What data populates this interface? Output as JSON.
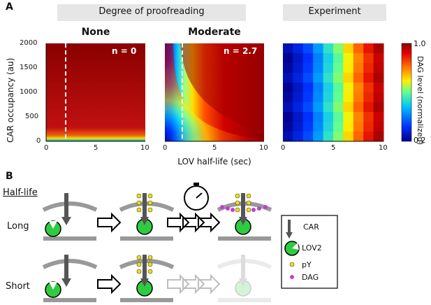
{
  "panelA": {
    "label": "A",
    "group_header": "Degree of proofreading",
    "experiment_header": "Experiment",
    "ylabel": "CAR occupancy (au)",
    "xlabel": "LOV half-life (sec)",
    "yticks": [
      "2000",
      "1500",
      "1000",
      "500",
      "0"
    ],
    "xticks": [
      "0",
      "5",
      "10"
    ],
    "colorbar_label": "DAG level (normalized)",
    "colorbar_ticks": [
      "1.0",
      "0.2"
    ]
  },
  "panelB": {
    "label": "B",
    "halflife_header": "Half-life",
    "row_long": "Long",
    "row_short": "Short",
    "legend": {
      "car": "CAR",
      "lov2": "LOV2",
      "py": "pY",
      "dag": "DAG"
    }
  },
  "colors": {
    "header_bg": "#e6e6e6",
    "lov2_green": "#2ecc40",
    "py_yellow": "#f2e000",
    "dag_magenta": "#c23fd0"
  },
  "chart_data": [
    {
      "type": "heatmap",
      "title": "None",
      "annotation": "n = 0",
      "xlabel": "LOV half-life (sec)",
      "ylabel": "CAR occupancy (au)",
      "xlim": [
        0,
        10
      ],
      "ylim": [
        0,
        2000
      ],
      "clim": [
        0.2,
        1.0
      ],
      "dashed_line_x": 2,
      "description_values": "near 1.0 everywhere except a low band below ~100 au"
    },
    {
      "type": "heatmap",
      "title": "Moderate",
      "annotation": "n = 2.7",
      "xlabel": "LOV half-life (sec)",
      "xlim": [
        0,
        10
      ],
      "ylim": [
        0,
        2000
      ],
      "clim": [
        0.2,
        1.0
      ],
      "dashed_line_x": 1.7
    },
    {
      "type": "heatmap",
      "title": "Experiment",
      "xlim": [
        0,
        10
      ],
      "ylim": [
        0,
        2000
      ],
      "clim": [
        0.2,
        1.0
      ],
      "columns": 10,
      "rows": 10,
      "column_values": [
        0.22,
        0.27,
        0.33,
        0.42,
        0.52,
        0.6,
        0.7,
        0.8,
        0.88,
        0.95
      ]
    }
  ]
}
